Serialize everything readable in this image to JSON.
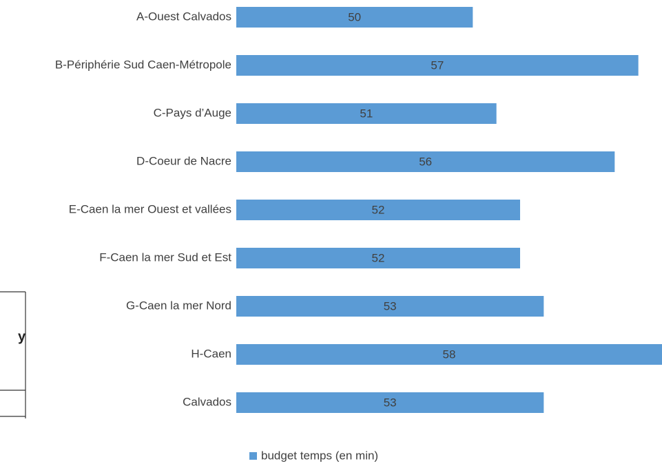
{
  "chart_data": {
    "type": "barh",
    "categories": [
      "A-Ouest Calvados",
      "B-Périphérie Sud Caen-Métropole",
      "C-Pays d’Auge",
      "D-Coeur de Nacre",
      "E-Caen la mer Ouest et vallées",
      "F-Caen la mer Sud et Est",
      "G-Caen la mer Nord",
      "H-Caen",
      "Calvados"
    ],
    "series": [
      {
        "name": "budget temps (en min)",
        "color": "#5b9bd5",
        "values": [
          50,
          57,
          51,
          56,
          52,
          52,
          53,
          58,
          53
        ]
      }
    ],
    "xlim": [
      40,
      58
    ],
    "legend": "bottom"
  },
  "fragment": {
    "text": "y"
  }
}
